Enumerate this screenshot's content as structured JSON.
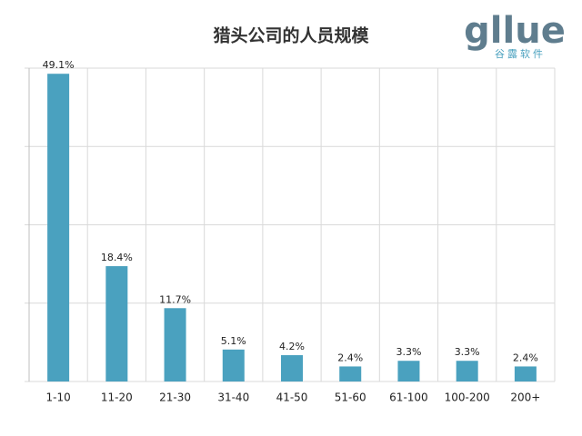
{
  "chart_data": {
    "type": "bar",
    "title": "猎头公司的人员规模",
    "logo": {
      "name": "gllue",
      "subtitle": "谷露软件"
    },
    "categories": [
      "1-10",
      "11-20",
      "21-30",
      "31-40",
      "41-50",
      "51-60",
      "61-100",
      "100-200",
      "200+"
    ],
    "values": [
      49.1,
      18.4,
      11.7,
      5.1,
      4.2,
      2.4,
      3.3,
      3.3,
      2.4
    ],
    "value_labels": [
      "49.1%",
      "18.4%",
      "11.7%",
      "5.1%",
      "4.2%",
      "2.4%",
      "3.3%",
      "3.3%",
      "2.4%"
    ],
    "color": "#4aa1bf",
    "ylim": [
      0,
      50
    ],
    "yticks": [
      0,
      12.5,
      25,
      37.5,
      50
    ],
    "grid": true
  }
}
